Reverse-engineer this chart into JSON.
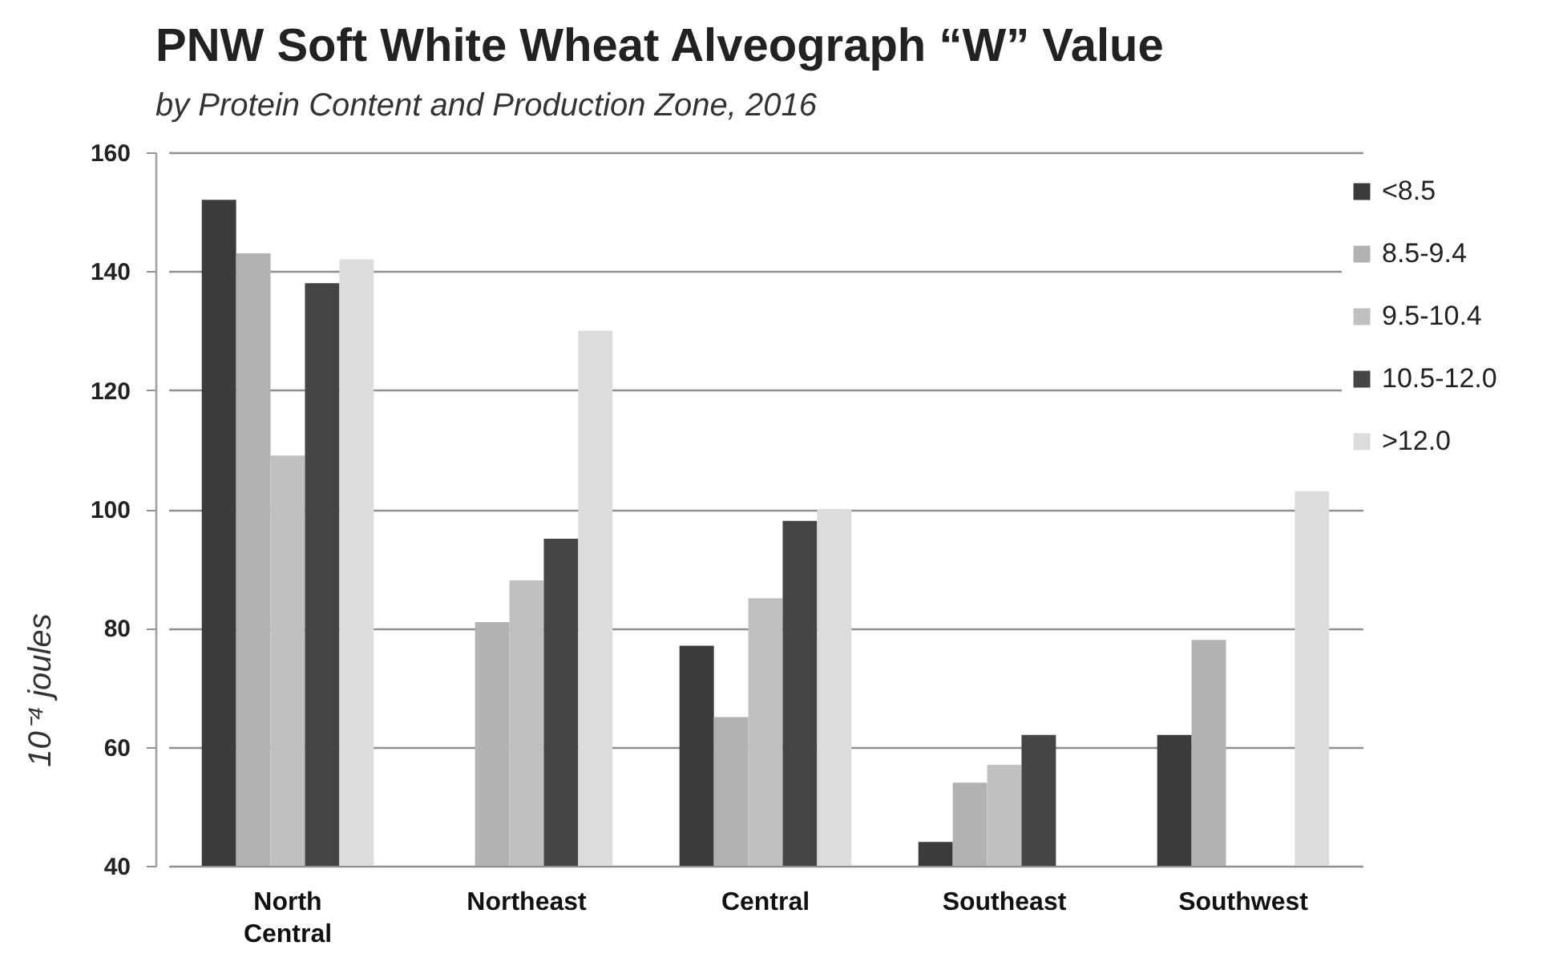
{
  "chart_data": {
    "type": "bar",
    "title": "PNW Soft White Wheat Alveograph “W” Value",
    "subtitle": "by Protein Content and Production Zone, 2016",
    "ylabel": "10⁻⁴ joules",
    "categories": [
      "North Central",
      "Northeast",
      "Central",
      "Southeast",
      "Southwest"
    ],
    "series": [
      {
        "name": "<8.5",
        "color": "#3b3b3b",
        "values": [
          152,
          null,
          77,
          44,
          62
        ]
      },
      {
        "name": "8.5-9.4",
        "color": "#b2b2b2",
        "values": [
          143,
          81,
          65,
          54,
          78
        ]
      },
      {
        "name": "9.5-10.4",
        "color": "#c0c0c0",
        "values": [
          109,
          88,
          85,
          57,
          null
        ]
      },
      {
        "name": "10.5-12.0",
        "color": "#454545",
        "values": [
          138,
          95,
          98,
          62,
          null
        ]
      },
      {
        "name": ">12.0",
        "color": "#dcdcdc",
        "values": [
          142,
          130,
          100,
          null,
          103
        ]
      }
    ],
    "ylim": [
      40,
      160
    ],
    "yticks": [
      40,
      60,
      80,
      100,
      120,
      140,
      160
    ],
    "grid": "y",
    "legend": "top right"
  }
}
